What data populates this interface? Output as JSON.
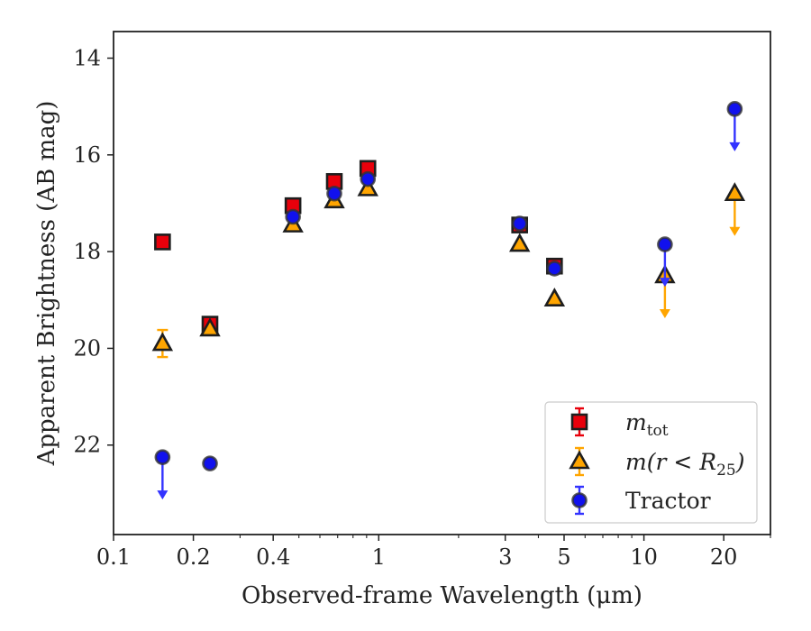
{
  "chart_data": {
    "type": "scatter",
    "title": "",
    "xlabel": "Observed-frame Wavelength (μm)",
    "ylabel": "Apparent Brightness (AB mag)",
    "xscale": "log",
    "xlim": [
      0.1,
      30
    ],
    "ylim": [
      23.85,
      13.45
    ],
    "y_inverted": true,
    "grid": false,
    "legend_position": "lower-right",
    "x_ticks": [
      {
        "value": 0.1,
        "label": "0.1"
      },
      {
        "value": 0.2,
        "label": "0.2"
      },
      {
        "value": 0.4,
        "label": "0.4"
      },
      {
        "value": 1,
        "label": "1"
      },
      {
        "value": 3,
        "label": "3"
      },
      {
        "value": 5,
        "label": "5"
      },
      {
        "value": 10,
        "label": "10"
      },
      {
        "value": 20,
        "label": "20"
      }
    ],
    "y_ticks": [
      {
        "value": 14,
        "label": "14"
      },
      {
        "value": 16,
        "label": "16"
      },
      {
        "value": 18,
        "label": "18"
      },
      {
        "value": 20,
        "label": "20"
      },
      {
        "value": 22,
        "label": "22"
      }
    ],
    "series": [
      {
        "name": "m_tot",
        "legend_main": "m",
        "legend_sub": "tot",
        "legend_tail": "",
        "marker": "square",
        "color": "#e8000b",
        "error_color": "#e8000b",
        "points": [
          {
            "x": 0.153,
            "y": 17.8
          },
          {
            "x": 0.231,
            "y": 19.5
          },
          {
            "x": 0.475,
            "y": 17.05
          },
          {
            "x": 0.68,
            "y": 16.55
          },
          {
            "x": 0.91,
            "y": 16.28
          },
          {
            "x": 3.4,
            "y": 17.45
          },
          {
            "x": 4.6,
            "y": 18.3
          }
        ]
      },
      {
        "name": "m(r < R25)",
        "legend_main": "m(r < R",
        "legend_sub": "25",
        "legend_tail": ")",
        "marker": "triangle",
        "color": "#ffa500",
        "error_color": "#ffa500",
        "points": [
          {
            "x": 0.153,
            "y": 19.9,
            "err": 0.28
          },
          {
            "x": 0.231,
            "y": 19.6
          },
          {
            "x": 0.475,
            "y": 17.45
          },
          {
            "x": 0.68,
            "y": 16.95
          },
          {
            "x": 0.91,
            "y": 16.7
          },
          {
            "x": 3.4,
            "y": 17.85
          },
          {
            "x": 4.6,
            "y": 18.98
          },
          {
            "x": 12.0,
            "y": 18.5,
            "upper_limit": true
          },
          {
            "x": 22.0,
            "y": 16.8,
            "upper_limit": true
          }
        ]
      },
      {
        "name": "Tractor",
        "legend_main": "Tractor",
        "legend_sub": "",
        "legend_tail": "",
        "marker": "circle",
        "color": "#1111ee",
        "error_color": "#3333ff",
        "points": [
          {
            "x": 0.153,
            "y": 22.25,
            "upper_limit": true
          },
          {
            "x": 0.231,
            "y": 22.38
          },
          {
            "x": 0.475,
            "y": 17.28
          },
          {
            "x": 0.68,
            "y": 16.8
          },
          {
            "x": 0.91,
            "y": 16.5
          },
          {
            "x": 3.4,
            "y": 17.42
          },
          {
            "x": 4.6,
            "y": 18.35
          },
          {
            "x": 12.0,
            "y": 17.85,
            "upper_limit": true
          },
          {
            "x": 22.0,
            "y": 15.05,
            "upper_limit": true
          }
        ]
      }
    ]
  }
}
